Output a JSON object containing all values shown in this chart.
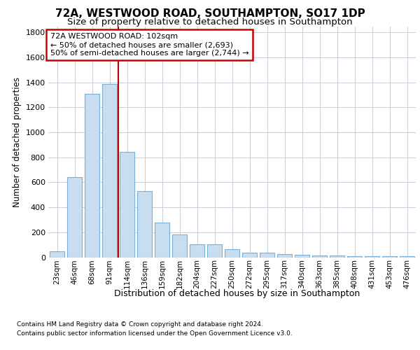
{
  "title1": "72A, WESTWOOD ROAD, SOUTHAMPTON, SO17 1DP",
  "title2": "Size of property relative to detached houses in Southampton",
  "xlabel": "Distribution of detached houses by size in Southampton",
  "ylabel": "Number of detached properties",
  "categories": [
    "23sqm",
    "46sqm",
    "68sqm",
    "91sqm",
    "114sqm",
    "136sqm",
    "159sqm",
    "182sqm",
    "204sqm",
    "227sqm",
    "250sqm",
    "272sqm",
    "295sqm",
    "317sqm",
    "340sqm",
    "363sqm",
    "385sqm",
    "408sqm",
    "431sqm",
    "453sqm",
    "476sqm"
  ],
  "values": [
    50,
    640,
    1310,
    1385,
    845,
    530,
    275,
    185,
    105,
    105,
    65,
    38,
    35,
    28,
    20,
    13,
    13,
    8,
    8,
    8,
    8
  ],
  "bar_color": "#c8ddf0",
  "bar_edge_color": "#7ab0d8",
  "grid_color": "#c8cdd8",
  "vline_color": "#bb0000",
  "vline_x": 3.5,
  "annotation_text": "72A WESTWOOD ROAD: 102sqm\n← 50% of detached houses are smaller (2,693)\n50% of semi-detached houses are larger (2,744) →",
  "annotation_box_bg": "#ffffff",
  "annotation_box_edge": "#cc0000",
  "ylim_max": 1850,
  "yticks": [
    0,
    200,
    400,
    600,
    800,
    1000,
    1200,
    1400,
    1600,
    1800
  ],
  "footnote1": "Contains HM Land Registry data © Crown copyright and database right 2024.",
  "footnote2": "Contains public sector information licensed under the Open Government Licence v3.0.",
  "bg_color": "#ffffff",
  "title1_fontsize": 11,
  "title2_fontsize": 9.5
}
